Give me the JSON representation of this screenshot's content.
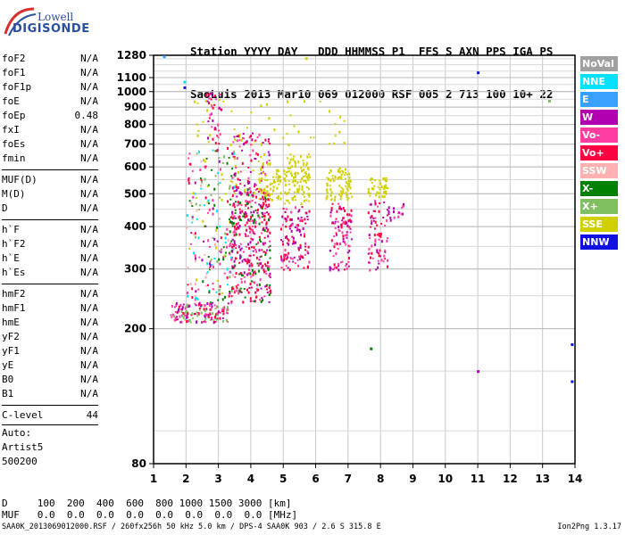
{
  "logo": {
    "line1": "Lowell",
    "line2": "DIGISONDE"
  },
  "header": {
    "row1": "Station YYYY DAY   DDD HHMMSS P1  FFS S AXN PPS IGA PS",
    "row2": "SaoLuis 2013 Mar10 069 012000 RSF 005 2 713 100 10+ 22"
  },
  "params": [
    {
      "group": [
        {
          "name": "foF2",
          "value": "N/A"
        },
        {
          "name": "foF1",
          "value": "N/A"
        },
        {
          "name": "foF1p",
          "value": "N/A"
        },
        {
          "name": "foE",
          "value": "N/A"
        },
        {
          "name": "foEp",
          "value": "0.48"
        },
        {
          "name": "fxI",
          "value": "N/A"
        },
        {
          "name": "foEs",
          "value": "N/A"
        },
        {
          "name": "fmin",
          "value": "N/A"
        }
      ]
    },
    {
      "group": [
        {
          "name": "MUF(D)",
          "value": "N/A"
        },
        {
          "name": "M(D)",
          "value": "N/A"
        },
        {
          "name": "D",
          "value": "N/A"
        }
      ]
    },
    {
      "group": [
        {
          "name": "h`F",
          "value": "N/A"
        },
        {
          "name": "h`F2",
          "value": "N/A"
        },
        {
          "name": "h`E",
          "value": "N/A"
        },
        {
          "name": "h`Es",
          "value": "N/A"
        }
      ]
    },
    {
      "group": [
        {
          "name": "hmF2",
          "value": "N/A"
        },
        {
          "name": "hmF1",
          "value": "N/A"
        },
        {
          "name": "hmE",
          "value": "N/A"
        },
        {
          "name": "yF2",
          "value": "N/A"
        },
        {
          "name": "yF1",
          "value": "N/A"
        },
        {
          "name": "yE",
          "value": "N/A"
        },
        {
          "name": "B0",
          "value": "N/A"
        },
        {
          "name": "B1",
          "value": "N/A"
        }
      ]
    },
    {
      "group": [
        {
          "name": "C-level",
          "value": "44"
        }
      ]
    }
  ],
  "auto": {
    "line1": "Auto:",
    "line2": "Artist5",
    "line3": "500200"
  },
  "legend": [
    {
      "label": "NoVal",
      "color": "#a0a0a0"
    },
    {
      "label": "NNE",
      "color": "#00e0ff"
    },
    {
      "label": "E",
      "color": "#3aa0ff"
    },
    {
      "label": "W",
      "color": "#b000b0"
    },
    {
      "label": "Vo-",
      "color": "#ff3ca0"
    },
    {
      "label": "Vo+",
      "color": "#ff0040"
    },
    {
      "label": "SSW",
      "color": "#ffb0b0"
    },
    {
      "label": "X-",
      "color": "#008000"
    },
    {
      "label": "X+",
      "color": "#80c060"
    },
    {
      "label": "SSE",
      "color": "#d0d000"
    },
    {
      "label": "NNW",
      "color": "#1010e0"
    }
  ],
  "bottom": {
    "d_line": "D     100  200  400  600  800 1000 1500 3000 [km]",
    "muf_line": "MUF   0.0  0.0  0.0  0.0  0.0  0.0  0.0  0.0 [MHz]"
  },
  "footer": {
    "left": "SAA0K_2013069012000.RSF / 260fx256h 50 kHz 5.0 km / DPS-4 SAA0K 903 / 2.6 S 315.8 E",
    "right": "Ion2Png 1.3.17"
  },
  "chart_data": {
    "type": "scatter",
    "x_ticks": [
      "1",
      "2",
      "3",
      "4",
      "5",
      "6",
      "7",
      "8",
      "9",
      "10",
      "11",
      "12",
      "13",
      "14"
    ],
    "y_ticks": [
      "80",
      "200",
      "300",
      "400",
      "500",
      "600",
      "700",
      "800",
      "900",
      "1000",
      "1100",
      "1280"
    ],
    "xlim": [
      1,
      14
    ],
    "y_range": [
      80,
      1280
    ],
    "y_scale": "log",
    "grid": true,
    "clusters": [
      {
        "name": "low-trace",
        "x": [
          1.5,
          3.3
        ],
        "y": [
          210,
          240
        ],
        "colors": [
          "Vo+",
          "Vo-",
          "X+",
          "W"
        ],
        "density": 160
      },
      {
        "name": "spread-2to3.5",
        "x": [
          2.0,
          3.5
        ],
        "y": [
          240,
          700
        ],
        "colors": [
          "Vo-",
          "Vo+",
          "W",
          "SSW",
          "X+",
          "X-",
          "SSE",
          "NNE"
        ],
        "density": 220
      },
      {
        "name": "dense-3.3to4.6",
        "x": [
          3.3,
          4.6
        ],
        "y": [
          240,
          520
        ],
        "colors": [
          "Vo+",
          "Vo-",
          "W",
          "Vo+",
          "X-"
        ],
        "density": 380
      },
      {
        "name": "col-3.4to4.6-high",
        "x": [
          3.4,
          4.6
        ],
        "y": [
          500,
          760
        ],
        "colors": [
          "Vo-",
          "Vo+",
          "W",
          "SSE"
        ],
        "density": 100
      },
      {
        "name": "SSE-band-4.6",
        "x": [
          4.2,
          4.9
        ],
        "y": [
          480,
          620
        ],
        "colors": [
          "SSE"
        ],
        "density": 60
      },
      {
        "name": "col-5",
        "x": [
          4.9,
          5.8
        ],
        "y": [
          300,
          460
        ],
        "colors": [
          "Vo+",
          "Vo-",
          "W"
        ],
        "density": 120
      },
      {
        "name": "SSE-5",
        "x": [
          5.0,
          5.8
        ],
        "y": [
          470,
          660
        ],
        "colors": [
          "SSE"
        ],
        "density": 110
      },
      {
        "name": "col-6.5",
        "x": [
          6.4,
          7.1
        ],
        "y": [
          300,
          470
        ],
        "colors": [
          "Vo+",
          "Vo-",
          "W"
        ],
        "density": 100
      },
      {
        "name": "SSE-6.5",
        "x": [
          6.3,
          7.1
        ],
        "y": [
          480,
          600
        ],
        "colors": [
          "SSE"
        ],
        "density": 80
      },
      {
        "name": "col-8",
        "x": [
          7.6,
          8.2
        ],
        "y": [
          300,
          480
        ],
        "colors": [
          "Vo+",
          "W",
          "Vo-"
        ],
        "density": 70
      },
      {
        "name": "SSE-8",
        "x": [
          7.6,
          8.2
        ],
        "y": [
          490,
          560
        ],
        "colors": [
          "SSE"
        ],
        "density": 45
      },
      {
        "name": "tail-8.5",
        "x": [
          8.1,
          8.7
        ],
        "y": [
          420,
          470
        ],
        "colors": [
          "Vo-",
          "W"
        ],
        "density": 20
      },
      {
        "name": "sparse-SSE-high",
        "x": [
          2.2,
          6.9
        ],
        "y": [
          700,
          960
        ],
        "colors": [
          "SSE"
        ],
        "density": 45
      },
      {
        "name": "sparse-high-col-3",
        "x": [
          2.6,
          3.1
        ],
        "y": [
          700,
          1000
        ],
        "colors": [
          "Vo-",
          "W",
          "Vo+"
        ],
        "density": 40
      }
    ],
    "isolated_points": [
      {
        "x": 1.32,
        "y": 1270,
        "color": "E"
      },
      {
        "x": 1.95,
        "y": 1070,
        "color": "NNE"
      },
      {
        "x": 1.95,
        "y": 1030,
        "color": "NNW"
      },
      {
        "x": 11.0,
        "y": 1140,
        "color": "NNW"
      },
      {
        "x": 13.2,
        "y": 940,
        "color": "X+"
      },
      {
        "x": 11.0,
        "y": 150,
        "color": "W"
      },
      {
        "x": 13.9,
        "y": 180,
        "color": "NNW"
      },
      {
        "x": 13.9,
        "y": 140,
        "color": "NNW"
      },
      {
        "x": 7.7,
        "y": 175,
        "color": "X-"
      },
      {
        "x": 5.7,
        "y": 1255,
        "color": "SSE"
      }
    ]
  }
}
